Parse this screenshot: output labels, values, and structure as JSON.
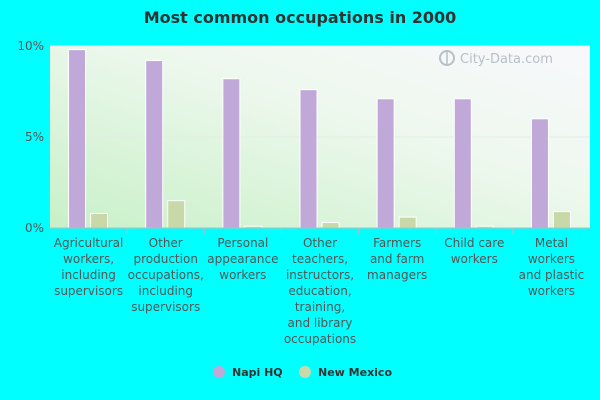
{
  "chart_data": {
    "type": "bar",
    "title": "Most common occupations in 2000",
    "categories": [
      [
        "Agricultural",
        "workers,",
        "including",
        "supervisors"
      ],
      [
        "Other",
        "production",
        "occupations,",
        "including",
        "supervisors"
      ],
      [
        "Personal",
        "appearance",
        "workers"
      ],
      [
        "Other",
        "teachers,",
        "instructors,",
        "education,",
        "training,",
        "and library",
        "occupations"
      ],
      [
        "Farmers",
        "and farm",
        "managers"
      ],
      [
        "Child care",
        "workers"
      ],
      [
        "Metal",
        "workers",
        "and plastic",
        "workers"
      ]
    ],
    "series": [
      {
        "name": "Napi HQ",
        "color": "#c0a8d8",
        "values": [
          9.8,
          9.2,
          8.2,
          7.6,
          7.1,
          7.1,
          6.0
        ]
      },
      {
        "name": "New Mexico",
        "color": "#c8d8a8",
        "values": [
          0.8,
          1.5,
          0.1,
          0.3,
          0.6,
          0.1,
          0.9
        ]
      }
    ],
    "yticks": [
      "0%",
      "5%",
      "10%"
    ],
    "ylim": [
      0,
      10
    ],
    "grid": true,
    "legend": "bottom"
  },
  "watermark": "City-Data.com"
}
